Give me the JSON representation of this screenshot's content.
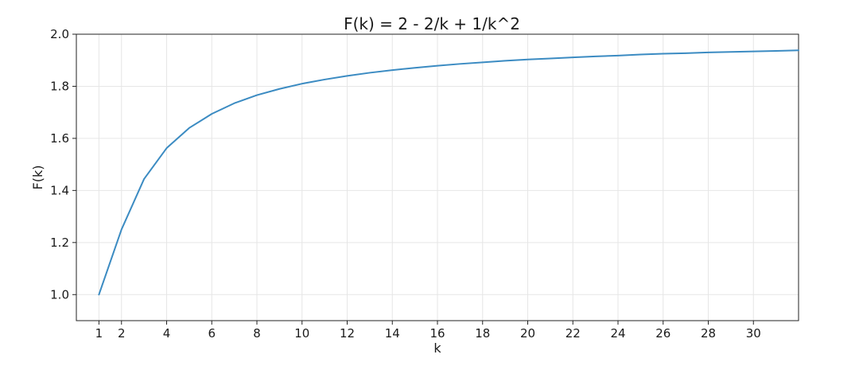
{
  "chart_data": {
    "type": "line",
    "title": "F(k) = 2 - 2/k + 1/k^2",
    "xlabel": "k",
    "ylabel": "F(k)",
    "xlim": [
      0,
      32
    ],
    "ylim": [
      0.9,
      2.0
    ],
    "xticks": [
      1,
      2,
      4,
      6,
      8,
      10,
      12,
      14,
      16,
      18,
      20,
      22,
      24,
      26,
      28,
      30
    ],
    "yticks": [
      1.0,
      1.2,
      1.4,
      1.6,
      1.8,
      2.0
    ],
    "ytick_labels": [
      "1.0",
      "1.2",
      "1.4",
      "1.6",
      "1.8",
      "2.0"
    ],
    "grid": true,
    "line_color": "#3b8bc2",
    "series": [
      {
        "x": [
          1,
          2,
          3,
          4,
          5,
          6,
          7,
          8,
          9,
          10,
          11,
          12,
          13,
          14,
          15,
          16,
          17,
          18,
          19,
          20,
          21,
          22,
          23,
          24,
          25,
          26,
          27,
          28,
          29,
          30,
          31,
          32
        ],
        "values": [
          1.0,
          1.25,
          1.444,
          1.5625,
          1.64,
          1.694,
          1.735,
          1.766,
          1.79,
          1.81,
          1.826,
          1.84,
          1.852,
          1.862,
          1.871,
          1.879,
          1.886,
          1.892,
          1.898,
          1.903,
          1.907,
          1.911,
          1.915,
          1.918,
          1.922,
          1.925,
          1.927,
          1.93,
          1.932,
          1.934,
          1.936,
          1.938
        ]
      }
    ]
  }
}
